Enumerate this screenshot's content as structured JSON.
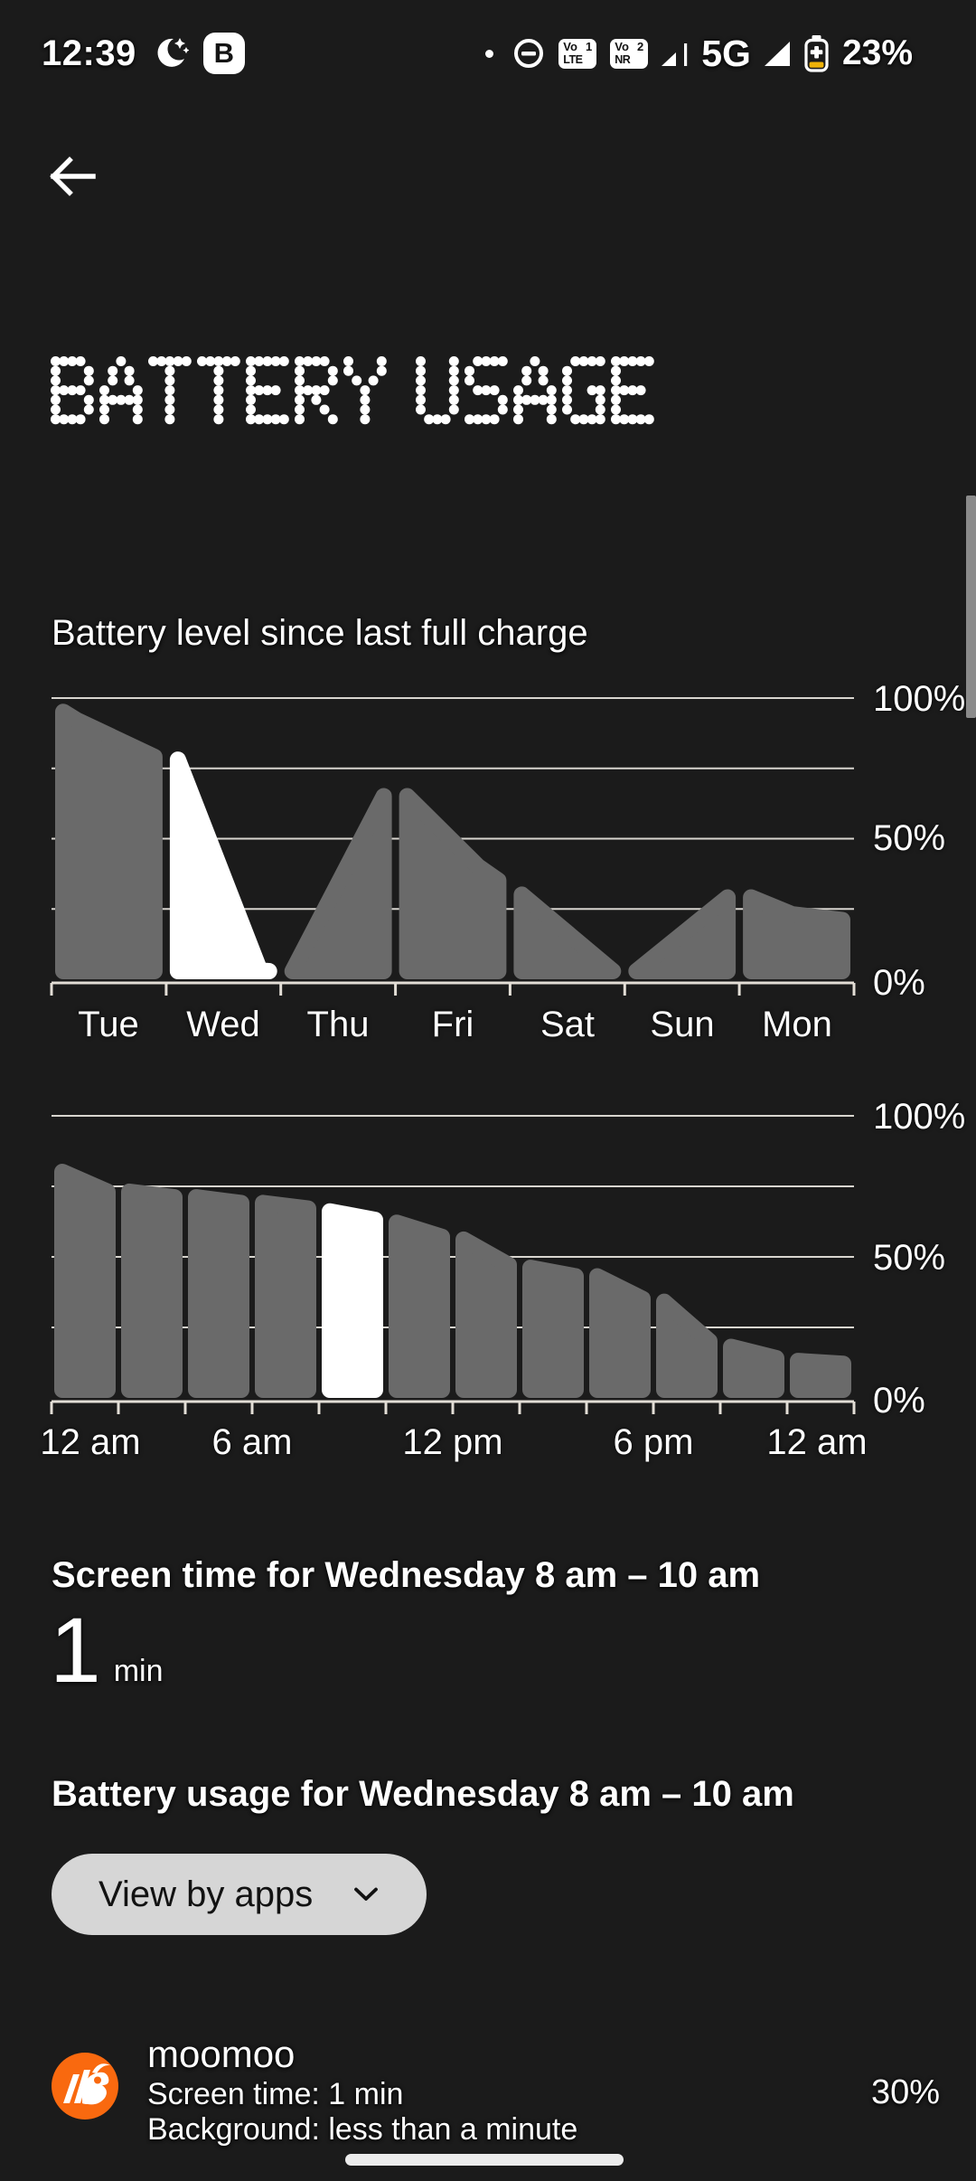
{
  "status_bar": {
    "time": "12:39",
    "app_badge": "B",
    "volte1": {
      "top": "Vo",
      "num": "1",
      "tech": "LTE"
    },
    "volte2": {
      "top": "Vo",
      "num": "2",
      "tech": "NR"
    },
    "network": "5G",
    "battery_percent": "23%"
  },
  "header": {
    "title": "BATTERY USAGE"
  },
  "section": {
    "subtitle": "Battery level since last full charge"
  },
  "chart_data": [
    {
      "type": "area",
      "title": "Battery level since last full charge (weekly)",
      "categories": [
        "Tue",
        "Wed",
        "Thu",
        "Fri",
        "Sat",
        "Sun",
        "Mon"
      ],
      "y_tick_labels": [
        "100%",
        "50%",
        "0%"
      ],
      "ylim": [
        0,
        100
      ],
      "gridline_percents": [
        100,
        75,
        50,
        25
      ],
      "highlighted_category": "Wed",
      "series": [
        {
          "day": "Tue",
          "highlight": false,
          "points": [
            [
              0,
              98
            ],
            [
              15,
              95
            ],
            [
              100,
              82
            ]
          ]
        },
        {
          "day": "Wed",
          "highlight": true,
          "points": [
            [
              0,
              81
            ],
            [
              90,
              6
            ],
            [
              100,
              2
            ]
          ]
        },
        {
          "day": "Thu",
          "highlight": false,
          "points": [
            [
              0,
              1
            ],
            [
              100,
              68
            ]
          ]
        },
        {
          "day": "Fri",
          "highlight": false,
          "points": [
            [
              0,
              68
            ],
            [
              78,
              43
            ],
            [
              100,
              38
            ]
          ]
        },
        {
          "day": "Sat",
          "highlight": false,
          "points": [
            [
              0,
              33
            ],
            [
              100,
              1
            ]
          ]
        },
        {
          "day": "Sun",
          "highlight": false,
          "points": [
            [
              0,
              1
            ],
            [
              100,
              32
            ]
          ]
        },
        {
          "day": "Mon",
          "highlight": false,
          "points": [
            [
              0,
              32
            ],
            [
              45,
              26
            ],
            [
              100,
              24
            ]
          ]
        }
      ]
    },
    {
      "type": "bar",
      "title": "Battery level for Wednesday (2-hour bars)",
      "x_tick_labels": [
        "12 am",
        "6 am",
        "12 pm",
        "6 pm",
        "12 am"
      ],
      "y_tick_labels": [
        "100%",
        "50%",
        "0%"
      ],
      "ylim": [
        0,
        100
      ],
      "gridline_percents": [
        100,
        75,
        50,
        25
      ],
      "hours_span": 24,
      "bar_hours": 2,
      "highlighted_bar_index": 4,
      "bars_start_end_percent": [
        [
          83,
          76
        ],
        [
          76,
          74
        ],
        [
          74,
          72
        ],
        [
          72,
          70
        ],
        [
          69,
          66
        ],
        [
          65,
          60
        ],
        [
          59,
          50
        ],
        [
          49,
          46
        ],
        [
          46,
          38
        ],
        [
          37,
          23
        ],
        [
          21,
          17
        ],
        [
          16,
          15
        ]
      ]
    }
  ],
  "screen_time": {
    "heading": "Screen time for Wednesday 8 am – 10 am",
    "value": "1",
    "unit": "min"
  },
  "battery_usage": {
    "heading": "Battery usage for Wednesday 8 am – 10 am",
    "dropdown_label": "View by apps"
  },
  "app": {
    "name": "moomoo",
    "screen_time": "Screen time: 1 min",
    "background": "Background: less than a minute",
    "percent": "30%"
  },
  "colors": {
    "background": "#1b1b1b",
    "chart_gray": "#6a6a6a",
    "chart_highlight": "#ffffff",
    "gridline": "#d8d5cf",
    "axis": "#e3ded6",
    "pill_bg": "#d6d6d6",
    "app_brand_orange": "#f9690f",
    "battery_saver_yellow": "#eeb208",
    "scrollbar": "#8b8b8b",
    "nav_handle": "#ececec"
  }
}
